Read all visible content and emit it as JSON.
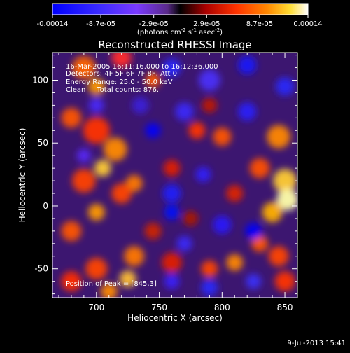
{
  "colorbar": {
    "ticks": [
      {
        "label": "-0.00014",
        "value": -0.00014
      },
      {
        "label": "-8.7e-05",
        "value": -8.7e-05
      },
      {
        "label": "-2.9e-05",
        "value": -2.9e-05
      },
      {
        "label": "2.9e-05",
        "value": 2.9e-05
      },
      {
        "label": "8.7e-05",
        "value": 8.7e-05
      },
      {
        "label": "0.00014",
        "value": 0.00014
      }
    ],
    "range": [
      -0.00014,
      0.00014
    ],
    "unit_main": "(photons cm",
    "unit_sup1": "-2",
    "unit_mid": " s",
    "unit_sup2": "-1",
    "unit_end": " asec",
    "unit_sup3": "-2",
    "unit_close": ")"
  },
  "chart_data": {
    "type": "heatmap",
    "title": "Reconstructed RHESSI Image",
    "xlabel": "Heliocentric X (arcsec)",
    "ylabel": "Heliocentric Y (arcsec)",
    "xlim": [
      665,
      860
    ],
    "ylim": [
      -73,
      122
    ],
    "xticks": [
      700,
      750,
      800,
      850
    ],
    "yticks": [
      -50,
      0,
      50,
      100
    ],
    "annotations": [
      "16-Mar-2005 16:11:16.000 to 16:12:36.000",
      "Detectors: 4F 5F 6F 7F 8F, Att 0",
      "Energy Range: 25.0 - 50.0 keV",
      "Clean     Total counts: 876."
    ],
    "peak_label": "Position of Peak = [845,3]",
    "peak": [
      845,
      3
    ]
  },
  "footer": {
    "timestamp": "9-Jul-2013 15:41"
  }
}
